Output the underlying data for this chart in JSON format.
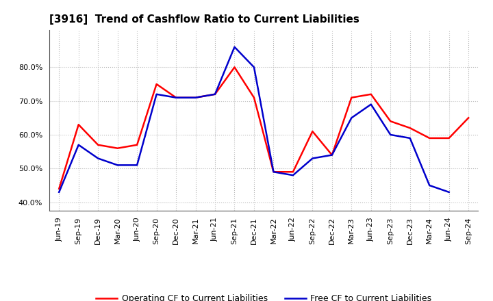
{
  "title": "[3916]  Trend of Cashflow Ratio to Current Liabilities",
  "x_labels": [
    "Jun-19",
    "Sep-19",
    "Dec-19",
    "Mar-20",
    "Jun-20",
    "Sep-20",
    "Dec-20",
    "Mar-21",
    "Jun-21",
    "Sep-21",
    "Dec-21",
    "Mar-22",
    "Jun-22",
    "Sep-22",
    "Dec-22",
    "Mar-23",
    "Jun-23",
    "Sep-23",
    "Dec-23",
    "Mar-24",
    "Jun-24",
    "Sep-24"
  ],
  "operating_cf": [
    0.44,
    0.63,
    0.57,
    0.56,
    0.57,
    0.75,
    0.71,
    0.71,
    0.72,
    0.8,
    0.71,
    0.49,
    0.49,
    0.61,
    0.54,
    0.71,
    0.72,
    0.64,
    0.62,
    0.59,
    0.59,
    0.65
  ],
  "free_cf": [
    0.43,
    0.57,
    0.53,
    0.51,
    0.51,
    0.72,
    0.71,
    0.71,
    0.72,
    0.86,
    0.8,
    0.49,
    0.48,
    0.53,
    0.54,
    0.65,
    0.69,
    0.6,
    0.59,
    0.45,
    0.43,
    null
  ],
  "operating_color": "#FF0000",
  "free_color": "#0000CC",
  "ylim": [
    0.375,
    0.91
  ],
  "yticks": [
    0.4,
    0.5,
    0.6,
    0.7,
    0.8
  ],
  "background_color": "#FFFFFF",
  "grid_color": "#AAAAAA",
  "title_fontsize": 11,
  "tick_fontsize": 8,
  "legend_fontsize": 9,
  "legend_labels": [
    "Operating CF to Current Liabilities",
    "Free CF to Current Liabilities"
  ]
}
